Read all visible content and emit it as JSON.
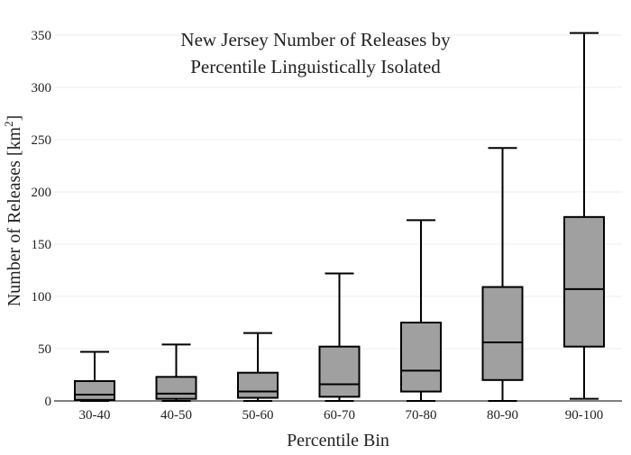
{
  "chart_data": {
    "type": "box",
    "title_lines": [
      "New Jersey Number of Releases by",
      "Percentile Linguistically Isolated"
    ],
    "xlabel": "Percentile Bin",
    "ylabel_main": "Number of Releases  [km",
    "ylabel_sup": "2",
    "ylabel_close": "]",
    "ylim": [
      0,
      360
    ],
    "yticks": [
      0,
      50,
      100,
      150,
      200,
      250,
      300,
      350
    ],
    "ytick_labels": [
      "0",
      "50",
      "100",
      "150",
      "200",
      "250",
      "300",
      "350"
    ],
    "grid": true,
    "categories": [
      "30-40",
      "40-50",
      "50-60",
      "60-70",
      "70-80",
      "80-90",
      "90-100"
    ],
    "boxes": [
      {
        "category": "30-40",
        "min": 0,
        "q1": 1,
        "median": 6,
        "q3": 19,
        "max": 47
      },
      {
        "category": "40-50",
        "min": 0,
        "q1": 2,
        "median": 7,
        "q3": 23,
        "max": 54
      },
      {
        "category": "50-60",
        "min": 0,
        "q1": 3,
        "median": 9,
        "q3": 27,
        "max": 65
      },
      {
        "category": "60-70",
        "min": 0,
        "q1": 4,
        "median": 16,
        "q3": 52,
        "max": 122
      },
      {
        "category": "70-80",
        "min": 0,
        "q1": 9,
        "median": 29,
        "q3": 75,
        "max": 173
      },
      {
        "category": "80-90",
        "min": 0,
        "q1": 20,
        "median": 56,
        "q3": 109,
        "max": 242
      },
      {
        "category": "90-100",
        "min": 2,
        "q1": 52,
        "median": 107,
        "q3": 176,
        "max": 352
      }
    ],
    "box_fill": "#a0a0a0",
    "line_color": "#000000",
    "grid_color": "#eeeeee"
  }
}
